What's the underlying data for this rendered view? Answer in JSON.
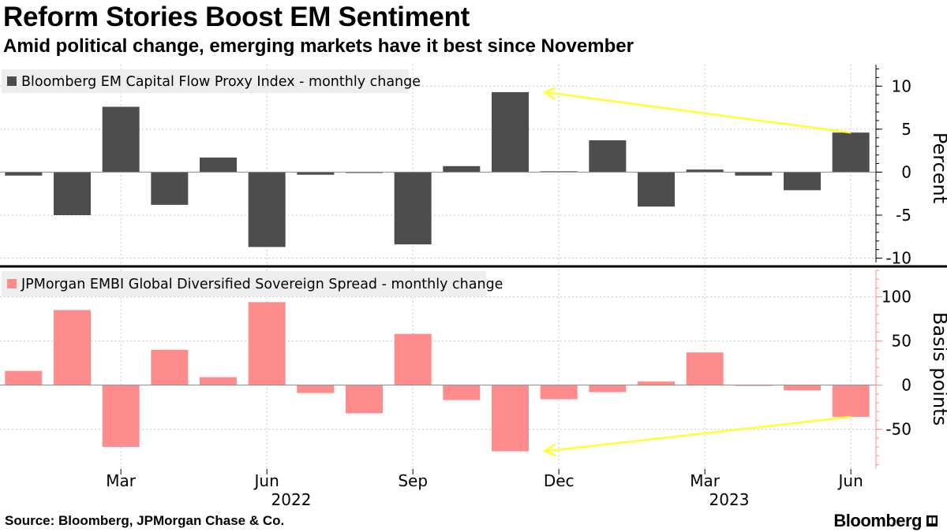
{
  "title": "Reform Stories Boost EM Sentiment",
  "subtitle": "Amid political change, emerging markets have it best since November",
  "source": "Source: Bloomberg, JPMorgan Chase & Co.",
  "brand": "Bloomberg",
  "colors": {
    "top_bars": "#4d4d4d",
    "bottom_bars": "#ff8c8c",
    "arrow": "#ffff33",
    "bottom_axis": "#ff8c8c"
  },
  "chart_data": [
    {
      "type": "bar",
      "legend": "Bloomberg EM Capital Flow Proxy Index - monthly change",
      "ylabel": "Percent",
      "ylim": [
        -10.5,
        12.5
      ],
      "yticks": [
        10,
        5,
        0,
        -5,
        -10
      ],
      "ytick_labels": [
        "10",
        "5",
        "0",
        "-5",
        "-10"
      ],
      "categories": [
        "Jan 2022",
        "Feb 2022",
        "Mar 2022",
        "Apr 2022",
        "May 2022",
        "Jun 2022",
        "Jul 2022",
        "Aug 2022",
        "Sep 2022",
        "Oct 2022",
        "Nov 2022",
        "Dec 2022",
        "Jan 2023",
        "Feb 2023",
        "Mar 2023",
        "Apr 2023",
        "May 2023",
        "Jun 2023"
      ],
      "values": [
        -0.4,
        -5.0,
        7.6,
        -3.8,
        1.7,
        -8.7,
        -0.3,
        -0.1,
        -8.4,
        0.7,
        9.3,
        0.1,
        3.7,
        -4.0,
        0.3,
        -0.4,
        -2.1,
        4.6
      ],
      "annotation": {
        "type": "arrow",
        "from_category": "Jun 2023",
        "from_value": 4.6,
        "to_category": "Nov 2022",
        "to_value": 9.3
      }
    },
    {
      "type": "bar",
      "legend": "JPMorgan EMBI Global Diversified Sovereign Spread - monthly change",
      "ylabel": "Basis points",
      "ylim": [
        -95,
        130
      ],
      "yticks": [
        100,
        50,
        0,
        -50
      ],
      "ytick_labels": [
        "100",
        "50",
        "0",
        "-50"
      ],
      "categories": [
        "Jan 2022",
        "Feb 2022",
        "Mar 2022",
        "Apr 2022",
        "May 2022",
        "Jun 2022",
        "Jul 2022",
        "Aug 2022",
        "Sep 2022",
        "Oct 2022",
        "Nov 2022",
        "Dec 2022",
        "Jan 2023",
        "Feb 2023",
        "Mar 2023",
        "Apr 2023",
        "May 2023",
        "Jun 2023"
      ],
      "values": [
        16,
        85,
        -70,
        40,
        9,
        94,
        -9,
        -32,
        58,
        -17,
        -75,
        -16,
        -8,
        4,
        37,
        -1,
        -6,
        -36
      ],
      "annotation": {
        "type": "arrow",
        "from_category": "Jun 2023",
        "from_value": -36,
        "to_category": "Nov 2022",
        "to_value": -75
      }
    }
  ],
  "x_axis": {
    "month_ticks": [
      {
        "label": "Mar",
        "index": 2
      },
      {
        "label": "Jun",
        "index": 5
      },
      {
        "label": "Sep",
        "index": 8
      },
      {
        "label": "Dec",
        "index": 11
      },
      {
        "label": "Mar",
        "index": 14
      },
      {
        "label": "Jun",
        "index": 17
      }
    ],
    "year_labels": [
      {
        "label": "2022",
        "index": 5.5
      },
      {
        "label": "2023",
        "index": 14.5
      }
    ]
  }
}
